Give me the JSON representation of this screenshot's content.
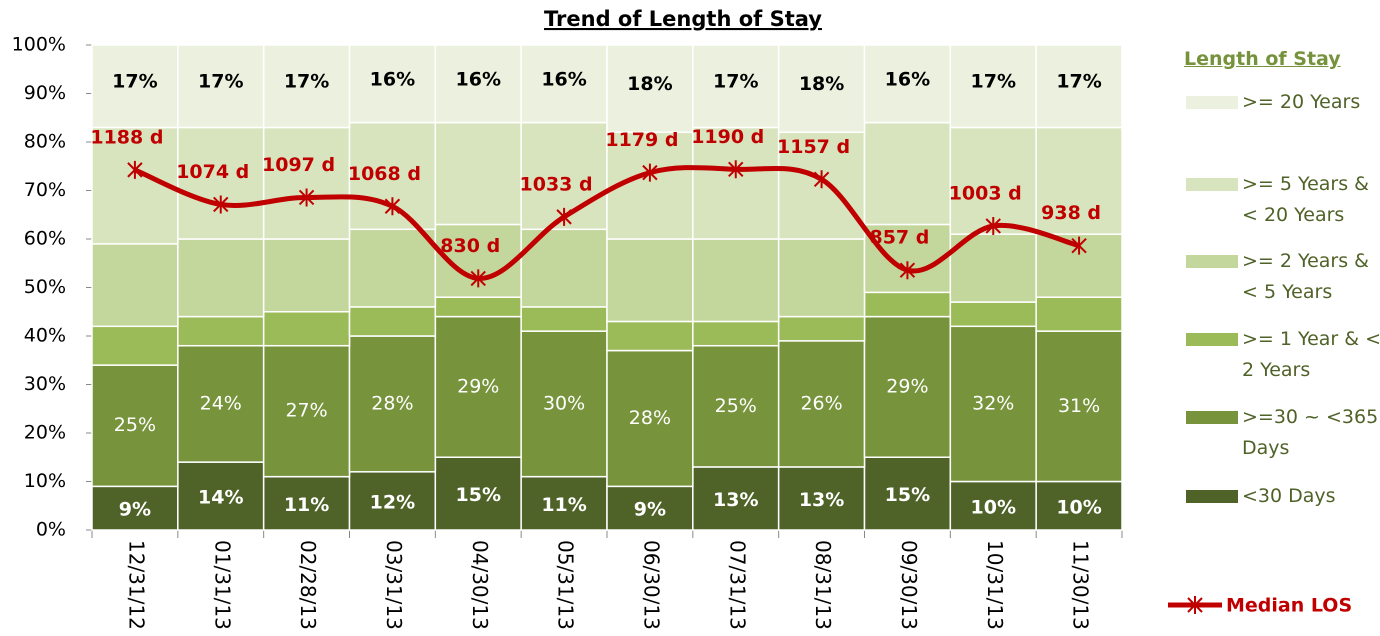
{
  "chart_data": {
    "type": "bar",
    "stacked": true,
    "title": "Trend of Length of Stay",
    "categories": [
      "12/31/12",
      "01/31/13",
      "02/28/13",
      "03/31/13",
      "04/30/13",
      "05/31/13",
      "06/30/13",
      "07/31/13",
      "08/31/13",
      "09/30/13",
      "10/31/13",
      "11/30/13"
    ],
    "ylim": [
      0,
      100
    ],
    "yticks": [
      {
        "value": 0,
        "label": "0%"
      },
      {
        "value": 10,
        "label": "10%"
      },
      {
        "value": 20,
        "label": "20%"
      },
      {
        "value": 30,
        "label": "30%"
      },
      {
        "value": 40,
        "label": "40%"
      },
      {
        "value": 50,
        "label": "50%"
      },
      {
        "value": 60,
        "label": "60%"
      },
      {
        "value": 70,
        "label": "70%"
      },
      {
        "value": 80,
        "label": "80%"
      },
      {
        "value": 90,
        "label": "90%"
      },
      {
        "value": 100,
        "label": "100%"
      }
    ],
    "y2lim": [
      0,
      1600
    ],
    "legend_title": "Length of Stay",
    "legend": "right",
    "series": [
      {
        "name": "<30 Days",
        "color": "#4f6228",
        "values": [
          9,
          14,
          11,
          12,
          15,
          11,
          9,
          13,
          13,
          15,
          10,
          10
        ],
        "value_labels": [
          "9%",
          "14%",
          "11%",
          "12%",
          "15%",
          "11%",
          "9%",
          "13%",
          "13%",
          "15%",
          "10%",
          "10%"
        ]
      },
      {
        "name": ">=30 ~ <365 Days",
        "color": "#77933c",
        "values": [
          25,
          24,
          27,
          28,
          29,
          30,
          28,
          25,
          26,
          29,
          32,
          31
        ],
        "value_labels": [
          "25%",
          "24%",
          "27%",
          "28%",
          "29%",
          "30%",
          "28%",
          "25%",
          "26%",
          "29%",
          "32%",
          "31%"
        ]
      },
      {
        "name": ">= 1 Year & < 2 Years",
        "color": "#9bbb59",
        "values": [
          8,
          6,
          7,
          6,
          4,
          5,
          6,
          5,
          5,
          5,
          5,
          7
        ]
      },
      {
        "name": ">= 2 Years & < 5 Years",
        "color": "#c3d69b",
        "values": [
          17,
          16,
          15,
          16,
          15,
          16,
          17,
          17,
          16,
          14,
          14,
          13
        ]
      },
      {
        "name": ">= 5 Years & < 20 Years",
        "color": "#d7e4bd",
        "values": [
          24,
          23,
          23,
          22,
          21,
          22,
          22,
          23,
          22,
          21,
          22,
          22
        ]
      },
      {
        "name": ">= 20 Years",
        "color": "#ebf1de",
        "values": [
          17,
          17,
          17,
          16,
          16,
          16,
          18,
          17,
          18,
          16,
          17,
          17
        ],
        "value_labels": [
          "17%",
          "17%",
          "17%",
          "16%",
          "16%",
          "16%",
          "18%",
          "17%",
          "18%",
          "16%",
          "17%",
          "17%"
        ]
      },
      {
        "name": "Median LOS",
        "type": "line",
        "axis": "y2",
        "color": "#c00000",
        "values": [
          1188,
          1074,
          1097,
          1068,
          830,
          1033,
          1179,
          1190,
          1157,
          857,
          1003,
          938
        ],
        "value_labels": [
          "1188 d",
          "1074 d",
          "1097 d",
          "1068 d",
          "830 d",
          "1033 d",
          "1179 d",
          "1190 d",
          "1157 d",
          "857 d",
          "1003 d",
          "938 d"
        ]
      }
    ]
  }
}
